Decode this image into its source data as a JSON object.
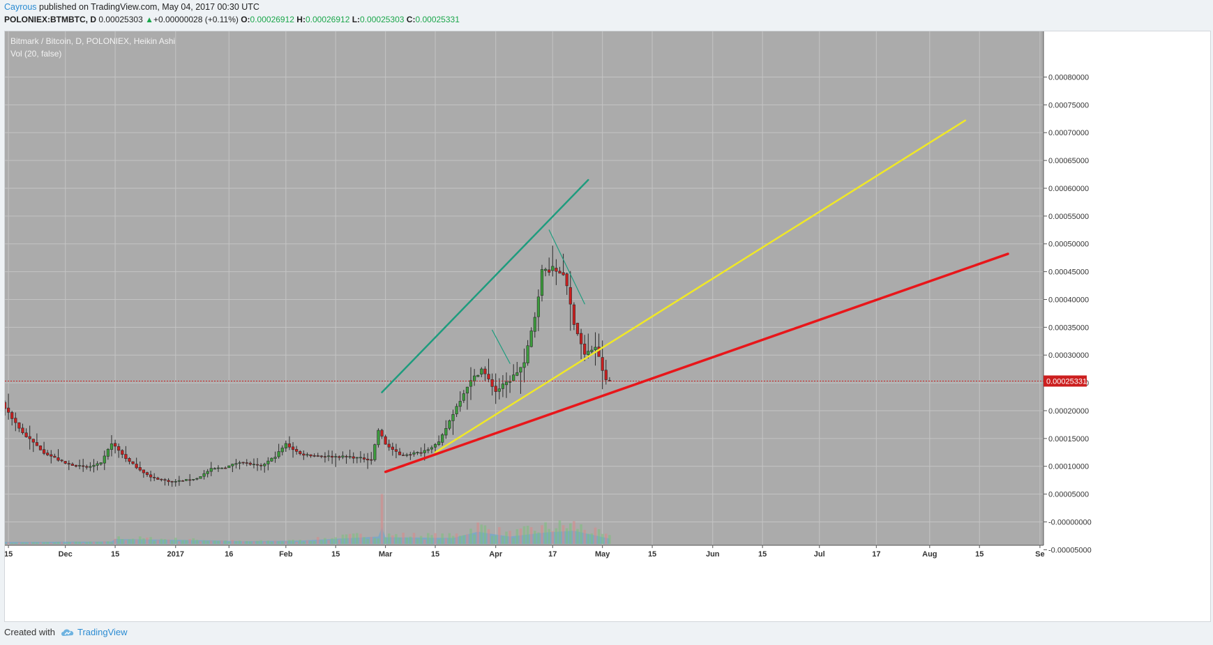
{
  "header": {
    "author": "Cayrous",
    "published_text": " published on TradingView.com, May 04, 2017 00:30 UTC",
    "symbol": "POLONIEX:BTMBTC, D",
    "last": "0.00025303",
    "change_arrow": "▲",
    "change": "+0.00000028 (+0.11%)",
    "o_label": "O:",
    "o_value": "0.00026912",
    "h_label": "H:",
    "h_value": "0.00026912",
    "l_label": "L:",
    "l_value": "0.00025303",
    "c_label": "C:",
    "c_value": "0.00025331"
  },
  "legend": {
    "series": "Bitmark / Bitcoin, D, POLONIEX, Heikin Ashi",
    "volume": "Vol (20, false)"
  },
  "footer": {
    "created_with": "Created with",
    "brand": "TradingView",
    "logo_icon": "cloud-icon"
  },
  "colors": {
    "background": "#ababab",
    "grid": "#c4c4c4",
    "up_candle": "#3c9d3c",
    "down_candle": "#cc1f1f",
    "teal_line": "#1e9c7e",
    "yellow_line": "#f0e826",
    "red_line": "#e8161a",
    "volume_ma": "#5aa6d8",
    "price_tag": "#cc1f1f"
  },
  "chart_data": {
    "type": "candlestick",
    "title": "Bitmark / Bitcoin, D, POLONIEX, Heikin Ashi",
    "indicator": "Vol (20, false)",
    "last_price_label": "0.00025331",
    "y_axis": {
      "ylim": [
        -6e-05,
        0.00084
      ],
      "ticks": [
        "0.00080000",
        "0.00075000",
        "0.00070000",
        "0.00065000",
        "0.00060000",
        "0.00055000",
        "0.00050000",
        "0.00045000",
        "0.00040000",
        "0.00035000",
        "0.00030000",
        "0.00025000",
        "0.00020000",
        "0.00015000",
        "0.00010000",
        "0.00005000",
        "-0.00000000",
        "-0.00005000"
      ],
      "tick_values": [
        0.0008,
        0.00075,
        0.0007,
        0.00065,
        0.0006,
        0.00055,
        0.0005,
        0.00045,
        0.0004,
        0.00035,
        0.0003,
        0.00025,
        0.0002,
        0.00015,
        0.0001,
        5e-05,
        0,
        -5e-05
      ]
    },
    "x_axis": {
      "date_start": "2016-11-14",
      "date_end": "2017-09-02",
      "ticks": [
        {
          "label": "15",
          "date": "2016-11-15"
        },
        {
          "label": "Dec",
          "date": "2016-12-01"
        },
        {
          "label": "15",
          "date": "2016-12-15"
        },
        {
          "label": "2017",
          "date": "2017-01-01"
        },
        {
          "label": "16",
          "date": "2017-01-16"
        },
        {
          "label": "Feb",
          "date": "2017-02-01"
        },
        {
          "label": "15",
          "date": "2017-02-15"
        },
        {
          "label": "Mar",
          "date": "2017-03-01"
        },
        {
          "label": "15",
          "date": "2017-03-15"
        },
        {
          "label": "Apr",
          "date": "2017-04-01"
        },
        {
          "label": "17",
          "date": "2017-04-17"
        },
        {
          "label": "May",
          "date": "2017-05-01"
        },
        {
          "label": "15",
          "date": "2017-05-15"
        },
        {
          "label": "Jun",
          "date": "2017-06-01"
        },
        {
          "label": "15",
          "date": "2017-06-15"
        },
        {
          "label": "Jul",
          "date": "2017-07-01"
        },
        {
          "label": "17",
          "date": "2017-07-17"
        },
        {
          "label": "Aug",
          "date": "2017-08-01"
        },
        {
          "label": "15",
          "date": "2017-08-15"
        },
        {
          "label": "Se",
          "date": "2017-09-01"
        }
      ]
    },
    "price_anchors": [
      {
        "date": "2016-11-14",
        "price": 0.000215
      },
      {
        "date": "2016-11-20",
        "price": 0.00016
      },
      {
        "date": "2016-11-26",
        "price": 0.000125
      },
      {
        "date": "2016-12-02",
        "price": 0.000105
      },
      {
        "date": "2016-12-08",
        "price": 9.8e-05
      },
      {
        "date": "2016-12-12",
        "price": 0.000105
      },
      {
        "date": "2016-12-15",
        "price": 0.000142
      },
      {
        "date": "2016-12-20",
        "price": 0.000108
      },
      {
        "date": "2016-12-26",
        "price": 8e-05
      },
      {
        "date": "2017-01-01",
        "price": 7.2e-05
      },
      {
        "date": "2017-01-08",
        "price": 7.8e-05
      },
      {
        "date": "2017-01-12",
        "price": 9.5e-05
      },
      {
        "date": "2017-01-16",
        "price": 9.8e-05
      },
      {
        "date": "2017-01-20",
        "price": 0.000108
      },
      {
        "date": "2017-01-26",
        "price": 0.0001
      },
      {
        "date": "2017-01-30",
        "price": 0.000118
      },
      {
        "date": "2017-02-02",
        "price": 0.00014
      },
      {
        "date": "2017-02-06",
        "price": 0.000122
      },
      {
        "date": "2017-02-12",
        "price": 0.000118
      },
      {
        "date": "2017-02-20",
        "price": 0.000117
      },
      {
        "date": "2017-02-26",
        "price": 0.000112
      },
      {
        "date": "2017-02-28",
        "price": 0.000165
      },
      {
        "date": "2017-03-02",
        "price": 0.00014
      },
      {
        "date": "2017-03-06",
        "price": 0.00012
      },
      {
        "date": "2017-03-12",
        "price": 0.000125
      },
      {
        "date": "2017-03-17",
        "price": 0.000142
      },
      {
        "date": "2017-03-21",
        "price": 0.000195
      },
      {
        "date": "2017-03-25",
        "price": 0.000245
      },
      {
        "date": "2017-03-29",
        "price": 0.000275
      },
      {
        "date": "2017-04-02",
        "price": 0.000235
      },
      {
        "date": "2017-04-06",
        "price": 0.000255
      },
      {
        "date": "2017-04-10",
        "price": 0.000285
      },
      {
        "date": "2017-04-13",
        "price": 0.00037
      },
      {
        "date": "2017-04-15",
        "price": 0.00045
      },
      {
        "date": "2017-04-17",
        "price": 0.000455
      },
      {
        "date": "2017-04-21",
        "price": 0.000448
      },
      {
        "date": "2017-04-24",
        "price": 0.00036
      },
      {
        "date": "2017-04-27",
        "price": 0.0003
      },
      {
        "date": "2017-04-30",
        "price": 0.000315
      },
      {
        "date": "2017-05-03",
        "price": 0.000253
      }
    ],
    "volume_profile": [
      {
        "date": "2016-11-14",
        "v": 0.1
      },
      {
        "date": "2016-12-14",
        "v": 0.18
      },
      {
        "date": "2016-12-15",
        "v": 0.55
      },
      {
        "date": "2017-01-10",
        "v": 0.35
      },
      {
        "date": "2017-01-20",
        "v": 0.22
      },
      {
        "date": "2017-02-05",
        "v": 0.3
      },
      {
        "date": "2017-02-27",
        "v": 0.9
      },
      {
        "date": "2017-02-28",
        "v": 4.2
      },
      {
        "date": "2017-03-01",
        "v": 0.8
      },
      {
        "date": "2017-03-20",
        "v": 0.7
      },
      {
        "date": "2017-03-27",
        "v": 1.6
      },
      {
        "date": "2017-04-05",
        "v": 0.9
      },
      {
        "date": "2017-04-15",
        "v": 1.5
      },
      {
        "date": "2017-04-23",
        "v": 1.75
      },
      {
        "date": "2017-05-03",
        "v": 0.6
      }
    ],
    "trendlines": [
      {
        "name": "teal-channel",
        "color": "teal",
        "p1": {
          "date": "2017-02-28",
          "price": 0.000233
        },
        "p2": {
          "date": "2017-04-27",
          "price": 0.000615
        }
      },
      {
        "name": "teal-short-1",
        "color": "teal",
        "p1": {
          "date": "2017-03-31",
          "price": 0.000345
        },
        "p2": {
          "date": "2017-04-05",
          "price": 0.000285
        }
      },
      {
        "name": "teal-short-2",
        "color": "teal",
        "p1": {
          "date": "2017-04-16",
          "price": 0.000525
        },
        "p2": {
          "date": "2017-04-26",
          "price": 0.000392
        }
      },
      {
        "name": "yellow-trend",
        "color": "yellow",
        "p1": {
          "date": "2017-03-15",
          "price": 0.000125
        },
        "p2": {
          "date": "2017-08-11",
          "price": 0.000722
        }
      },
      {
        "name": "red-trend",
        "color": "red",
        "p1": {
          "date": "2017-03-01",
          "price": 9e-05
        },
        "p2": {
          "date": "2017-08-23",
          "price": 0.000482
        }
      }
    ]
  }
}
